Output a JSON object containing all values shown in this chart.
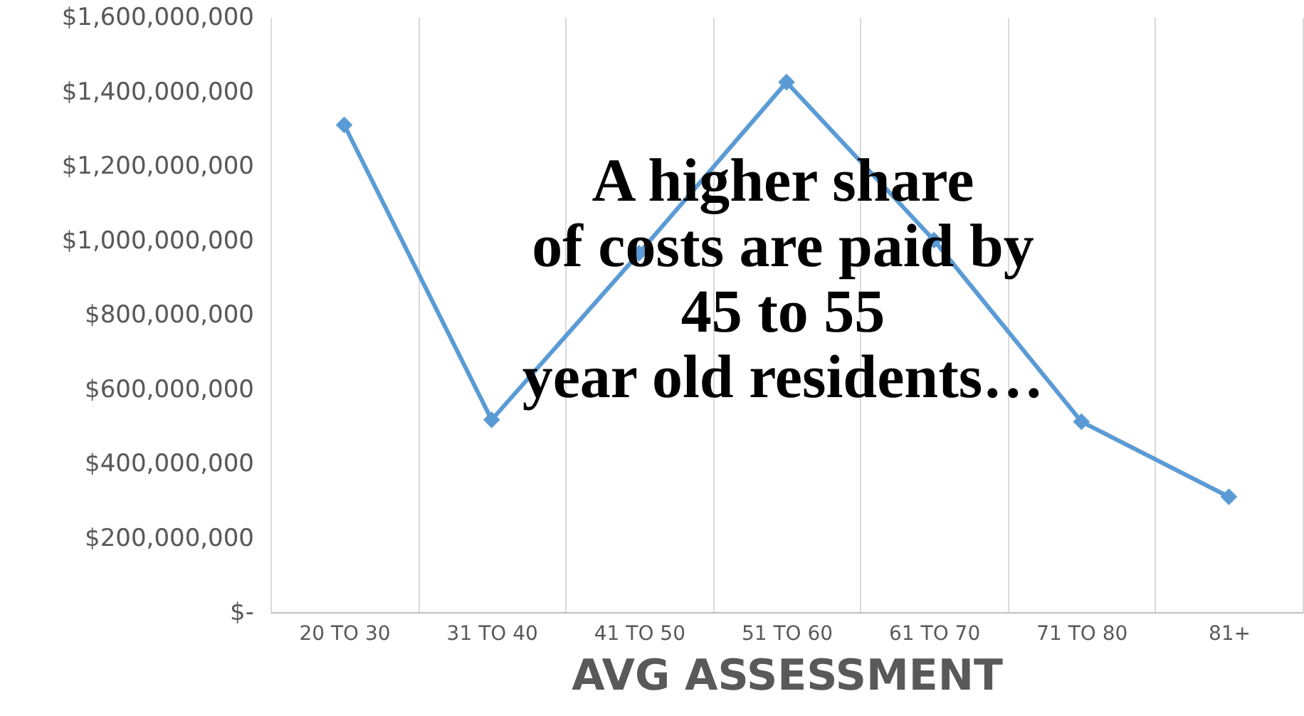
{
  "chart_data": {
    "type": "line",
    "xlabel": "AVG ASSESSMENT",
    "categories": [
      "20 TO 30",
      "31 TO 40",
      "41 TO 50",
      "51 TO 60",
      "61 TO 70",
      "71 TO 80",
      "81+"
    ],
    "series": [
      {
        "color": "#5b9bd5",
        "values": [
          1310000000,
          517000000,
          965000000,
          1425000000,
          1000000000,
          512000000,
          310000000
        ]
      }
    ],
    "ylim": [
      0,
      1600000000
    ],
    "yticks": [
      {
        "value": 0,
        "label": "$-"
      },
      {
        "value": 200000000,
        "label": "$200,000,000"
      },
      {
        "value": 400000000,
        "label": "$400,000,000"
      },
      {
        "value": 600000000,
        "label": "$600,000,000"
      },
      {
        "value": 800000000,
        "label": "$800,000,000"
      },
      {
        "value": 1000000000,
        "label": "$1,000,000,000"
      },
      {
        "value": 1200000000,
        "label": "$1,200,000,000"
      },
      {
        "value": 1400000000,
        "label": "$1,400,000,000"
      },
      {
        "value": 1600000000,
        "label": "$1,600,000,000"
      }
    ],
    "annotations": [
      "A higher share\nof costs are paid by\n45 to 55\nyear old residents…"
    ],
    "grid": "x",
    "marker": "diamond",
    "line_style": "solid"
  }
}
